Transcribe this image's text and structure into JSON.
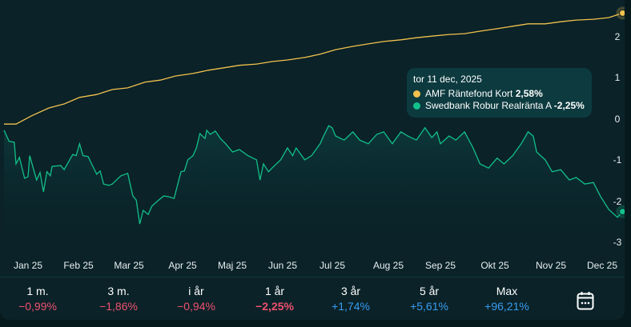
{
  "colors": {
    "amf": "#f2c14e",
    "swedbank": "#12c08a",
    "negative": "#f0506e",
    "positive": "#3a9cf0"
  },
  "chart_data": {
    "type": "line",
    "x_unit": "day of 2025",
    "ylim": [
      -3,
      2.6
    ],
    "y_ticks": [
      "2",
      "1",
      "0",
      "-1",
      "-2",
      "-3"
    ],
    "x_ticks": [
      "Jan 25",
      "Feb 25",
      "Mar 25",
      "Apr 25",
      "Maj 25",
      "Jun 25",
      "Jul 25",
      "Aug 25",
      "Sep 25",
      "Okt 25",
      "Nov 25",
      "Dec 25"
    ],
    "series": [
      {
        "name": "AMF Räntefond Kort",
        "points": [
          [
            -14,
            -0.12
          ],
          [
            -7,
            -0.12
          ],
          [
            2,
            0.08
          ],
          [
            12,
            0.27
          ],
          [
            21,
            0.37
          ],
          [
            30,
            0.53
          ],
          [
            40,
            0.6
          ],
          [
            49,
            0.72
          ],
          [
            58,
            0.76
          ],
          [
            68,
            0.9
          ],
          [
            77,
            0.95
          ],
          [
            86,
            1.05
          ],
          [
            96,
            1.11
          ],
          [
            105,
            1.19
          ],
          [
            114,
            1.25
          ],
          [
            123,
            1.31
          ],
          [
            133,
            1.34
          ],
          [
            142,
            1.4
          ],
          [
            151,
            1.44
          ],
          [
            161,
            1.5
          ],
          [
            170,
            1.58
          ],
          [
            179,
            1.69
          ],
          [
            189,
            1.77
          ],
          [
            198,
            1.83
          ],
          [
            207,
            1.89
          ],
          [
            217,
            1.93
          ],
          [
            226,
            1.98
          ],
          [
            235,
            2.02
          ],
          [
            245,
            2.06
          ],
          [
            254,
            2.08
          ],
          [
            263,
            2.14
          ],
          [
            273,
            2.2
          ],
          [
            282,
            2.26
          ],
          [
            291,
            2.32
          ],
          [
            301,
            2.32
          ],
          [
            310,
            2.37
          ],
          [
            319,
            2.41
          ],
          [
            329,
            2.43
          ],
          [
            338,
            2.47
          ],
          [
            346,
            2.58
          ]
        ]
      },
      {
        "name": "Swedbank Robur Realränta A",
        "points": [
          [
            -14,
            -0.27
          ],
          [
            -11,
            -0.54
          ],
          [
            -8,
            -0.56
          ],
          [
            -7,
            -1.09
          ],
          [
            -5,
            -0.93
          ],
          [
            -2,
            -1.44
          ],
          [
            0,
            -1.4
          ],
          [
            1,
            -0.89
          ],
          [
            5,
            -1.48
          ],
          [
            7,
            -1.3
          ],
          [
            9,
            -1.77
          ],
          [
            11,
            -1.28
          ],
          [
            13,
            -1.38
          ],
          [
            14,
            -1.15
          ],
          [
            19,
            -1.13
          ],
          [
            21,
            -1.23
          ],
          [
            26,
            -0.86
          ],
          [
            28,
            -0.89
          ],
          [
            30,
            -0.6
          ],
          [
            32,
            -0.89
          ],
          [
            35,
            -0.91
          ],
          [
            37,
            -1.09
          ],
          [
            40,
            -1.34
          ],
          [
            42,
            -1.26
          ],
          [
            44,
            -1.58
          ],
          [
            47,
            -1.61
          ],
          [
            49,
            -1.58
          ],
          [
            54,
            -1.38
          ],
          [
            58,
            -1.32
          ],
          [
            61,
            -1.87
          ],
          [
            63,
            -1.97
          ],
          [
            65,
            -2.55
          ],
          [
            67,
            -2.22
          ],
          [
            70,
            -2.32
          ],
          [
            72,
            -2.12
          ],
          [
            76,
            -1.97
          ],
          [
            79,
            -1.87
          ],
          [
            82,
            -1.89
          ],
          [
            85,
            -1.93
          ],
          [
            89,
            -1.28
          ],
          [
            91,
            -1.26
          ],
          [
            93,
            -0.99
          ],
          [
            96,
            -0.89
          ],
          [
            98,
            -0.7
          ],
          [
            100,
            -0.35
          ],
          [
            103,
            -0.47
          ],
          [
            104,
            -0.27
          ],
          [
            106,
            -0.37
          ],
          [
            109,
            -0.29
          ],
          [
            112,
            -0.47
          ],
          [
            115,
            -0.6
          ],
          [
            119,
            -0.8
          ],
          [
            123,
            -0.74
          ],
          [
            128,
            -0.89
          ],
          [
            133,
            -0.99
          ],
          [
            135,
            -1.48
          ],
          [
            137,
            -1.09
          ],
          [
            140,
            -1.28
          ],
          [
            142,
            -1.19
          ],
          [
            147,
            -0.99
          ],
          [
            151,
            -0.7
          ],
          [
            154,
            -0.89
          ],
          [
            156,
            -0.7
          ],
          [
            161,
            -0.99
          ],
          [
            165,
            -0.89
          ],
          [
            170,
            -0.6
          ],
          [
            172,
            -0.41
          ],
          [
            175,
            -0.16
          ],
          [
            177,
            -0.21
          ],
          [
            179,
            -0.41
          ],
          [
            184,
            -0.51
          ],
          [
            189,
            -0.31
          ],
          [
            193,
            -0.51
          ],
          [
            198,
            -0.6
          ],
          [
            203,
            -0.37
          ],
          [
            207,
            -0.31
          ],
          [
            212,
            -0.6
          ],
          [
            217,
            -0.31
          ],
          [
            221,
            -0.41
          ],
          [
            226,
            -0.51
          ],
          [
            231,
            -0.21
          ],
          [
            235,
            -0.45
          ],
          [
            238,
            -0.31
          ],
          [
            240,
            -0.6
          ],
          [
            245,
            -0.41
          ],
          [
            249,
            -0.51
          ],
          [
            254,
            -0.31
          ],
          [
            259,
            -0.7
          ],
          [
            263,
            -1.09
          ],
          [
            268,
            -1.19
          ],
          [
            273,
            -0.95
          ],
          [
            277,
            -1.09
          ],
          [
            282,
            -0.89
          ],
          [
            287,
            -0.6
          ],
          [
            291,
            -0.31
          ],
          [
            294,
            -0.41
          ],
          [
            296,
            -0.8
          ],
          [
            301,
            -0.99
          ],
          [
            305,
            -1.28
          ],
          [
            310,
            -1.23
          ],
          [
            315,
            -1.48
          ],
          [
            319,
            -1.42
          ],
          [
            324,
            -1.58
          ],
          [
            329,
            -1.54
          ],
          [
            333,
            -1.87
          ],
          [
            338,
            -2.2
          ],
          [
            343,
            -2.39
          ],
          [
            346,
            -2.25
          ]
        ]
      }
    ]
  },
  "tooltip": {
    "date": "tor 11 dec, 2025",
    "rows": [
      {
        "name": "AMF Räntefond Kort",
        "value": "2,58%"
      },
      {
        "name": "Swedbank Robur Realränta A",
        "value": "-2,25%"
      }
    ]
  },
  "periods": [
    {
      "label": "1 m.",
      "value": "−0,99%"
    },
    {
      "label": "3 m.",
      "value": "−1,86%"
    },
    {
      "label": "i år",
      "value": "−0,94%"
    },
    {
      "label": "1 år",
      "value": "−2,25%"
    },
    {
      "label": "3 år",
      "value": "+1,74%"
    },
    {
      "label": "5 år",
      "value": "+5,61%"
    },
    {
      "label": "Max",
      "value": "+96,21%"
    }
  ]
}
